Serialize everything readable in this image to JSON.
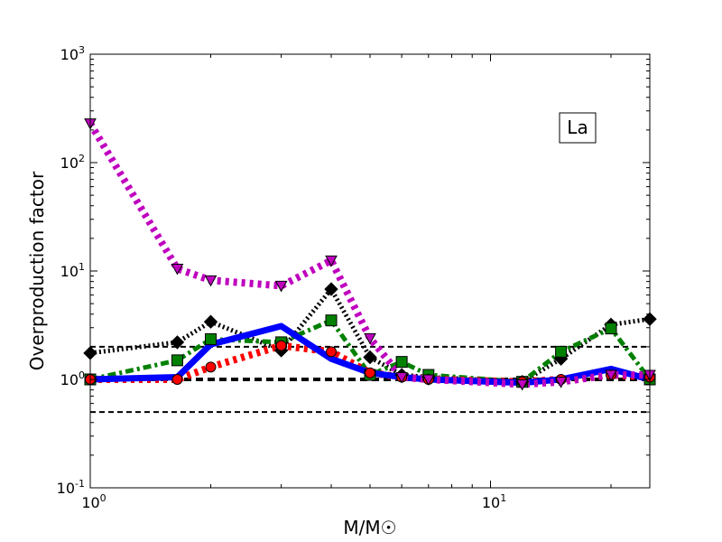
{
  "chart_data": {
    "type": "line",
    "xlabel": "M/M☉",
    "ylabel": "Overproduction factor",
    "x_scale": "log",
    "y_scale": "log",
    "xlim": [
      1,
      25
    ],
    "ylim": [
      0.1,
      1000
    ],
    "grid": false,
    "annotation": "La",
    "annotation_position": "top-right",
    "x_ticks": [
      {
        "value": 1,
        "base": "10",
        "exp": "0"
      },
      {
        "value": 10,
        "base": "10",
        "exp": "1"
      }
    ],
    "y_ticks": [
      {
        "value": 0.1,
        "base": "10",
        "exp": "-1"
      },
      {
        "value": 1,
        "base": "10",
        "exp": "0"
      },
      {
        "value": 10,
        "base": "10",
        "exp": "1"
      },
      {
        "value": 100,
        "base": "10",
        "exp": "2"
      },
      {
        "value": 1000,
        "base": "10",
        "exp": "3"
      }
    ],
    "reference_lines": [
      {
        "y": 2.0,
        "style": "dashed-thin"
      },
      {
        "y": 1.0,
        "style": "dashed-thick"
      },
      {
        "y": 0.5,
        "style": "dashed-thin"
      }
    ],
    "series": [
      {
        "color": "#000000",
        "line": "dotted",
        "marker": "diamond",
        "x": [
          1.0,
          1.65,
          2.0,
          3.0,
          4.0,
          5.0,
          6.0,
          7.0,
          12.0,
          15.0,
          20.0,
          25.0
        ],
        "y": [
          1.75,
          2.2,
          3.4,
          1.85,
          6.8,
          1.6,
          1.1,
          1.05,
          0.95,
          1.55,
          3.2,
          3.6
        ]
      },
      {
        "color": "#008000",
        "line": "dashdot",
        "marker": "square",
        "x": [
          1.0,
          1.65,
          2.0,
          3.0,
          4.0,
          5.0,
          6.0,
          7.0,
          12.0,
          15.0,
          20.0,
          25.0
        ],
        "y": [
          1.0,
          1.5,
          2.35,
          2.2,
          3.5,
          1.1,
          1.45,
          1.1,
          0.95,
          1.8,
          2.95,
          1.0
        ]
      },
      {
        "color": "#ff0000",
        "line": "dotted",
        "marker": "circle",
        "x": [
          1.0,
          1.65,
          2.0,
          3.0,
          4.0,
          5.0,
          6.0,
          7.0,
          12.0,
          15.0,
          20.0,
          25.0
        ],
        "y": [
          1.0,
          1.0,
          1.3,
          2.05,
          1.8,
          1.15,
          1.05,
          1.0,
          0.95,
          1.0,
          1.1,
          1.05
        ]
      },
      {
        "color": "#0000ff",
        "line": "solid",
        "marker": "none",
        "x": [
          1.0,
          1.65,
          2.0,
          3.0,
          4.0,
          5.0,
          6.0,
          7.0,
          12.0,
          15.0,
          20.0,
          25.0
        ],
        "y": [
          1.0,
          1.05,
          2.1,
          3.1,
          1.55,
          1.15,
          1.05,
          1.0,
          0.93,
          1.0,
          1.25,
          1.0
        ]
      },
      {
        "color": "#bf00bf",
        "line": "dotted",
        "marker": "triangle-down",
        "x": [
          1.0,
          1.65,
          2.0,
          3.0,
          4.0,
          5.0,
          6.0,
          7.0,
          12.0,
          15.0,
          20.0,
          25.0
        ],
        "y": [
          230,
          10.5,
          8.2,
          7.3,
          12.5,
          2.4,
          1.05,
          1.0,
          0.9,
          0.95,
          1.1,
          1.1
        ]
      }
    ]
  }
}
